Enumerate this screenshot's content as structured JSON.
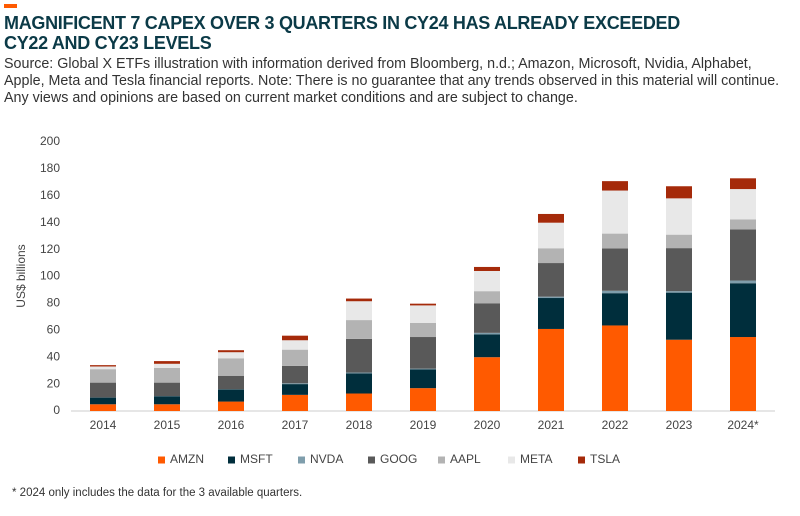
{
  "chart_data": {
    "type": "stacked_bar",
    "title": "MAGNIFICENT 7 CAPEX OVER 3 QUARTERS IN CY24 HAS ALREADY EXCEEDED CY22 AND CY23 LEVELS",
    "subtitle": "Source: Global X ETFs illustration with information derived from Bloomberg, n.d.; Amazon, Microsoft, Nvidia, Alphabet, Apple, Meta and Tesla financial reports. Note: There is no guarantee that any trends observed in this material will continue. Any views and opinions are based on current market conditions and are subject to change.",
    "footnote": "* 2024 only includes the data for the 3 available quarters.",
    "y_label": "US$ billions",
    "categories": [
      "2014",
      "2015",
      "2016",
      "2017",
      "2018",
      "2019",
      "2020",
      "2021",
      "2022",
      "2023",
      "2024*"
    ],
    "series": [
      {
        "name": "AMZN",
        "color": "#ff5a00",
        "values": [
          5,
          5,
          7,
          12,
          13,
          17,
          40,
          61,
          63.6,
          53,
          55
        ]
      },
      {
        "name": "MSFT",
        "color": "#002e3c",
        "values": [
          5,
          6,
          9,
          8,
          15,
          14,
          17,
          23,
          24,
          35,
          40
        ]
      },
      {
        "name": "NVDA",
        "color": "#7f9eac",
        "values": [
          0.1,
          0.1,
          0.2,
          0.6,
          0.6,
          0.5,
          1.1,
          1,
          1.8,
          1.1,
          2
        ]
      },
      {
        "name": "GOOG",
        "color": "#595959",
        "values": [
          11,
          10,
          10,
          13,
          25,
          23.5,
          22,
          25,
          31.5,
          32,
          38
        ]
      },
      {
        "name": "AAPL",
        "color": "#b3b3b3",
        "values": [
          10,
          11,
          13,
          12,
          14,
          10.5,
          9,
          11,
          11,
          10,
          7.5
        ]
      },
      {
        "name": "META",
        "color": "#e8e8e8",
        "values": [
          2,
          3,
          4.5,
          7,
          14,
          13,
          15,
          19,
          32,
          27,
          22.5
        ]
      },
      {
        "name": "TSLA",
        "color": "#a52a0a",
        "values": [
          1,
          2,
          1.5,
          3.4,
          2,
          1.3,
          3,
          6.5,
          7,
          9,
          8
        ]
      }
    ],
    "ylim": [
      0,
      200
    ],
    "yticks": [
      0,
      20,
      40,
      60,
      80,
      100,
      120,
      140,
      160,
      180,
      200
    ],
    "grid": false
  }
}
